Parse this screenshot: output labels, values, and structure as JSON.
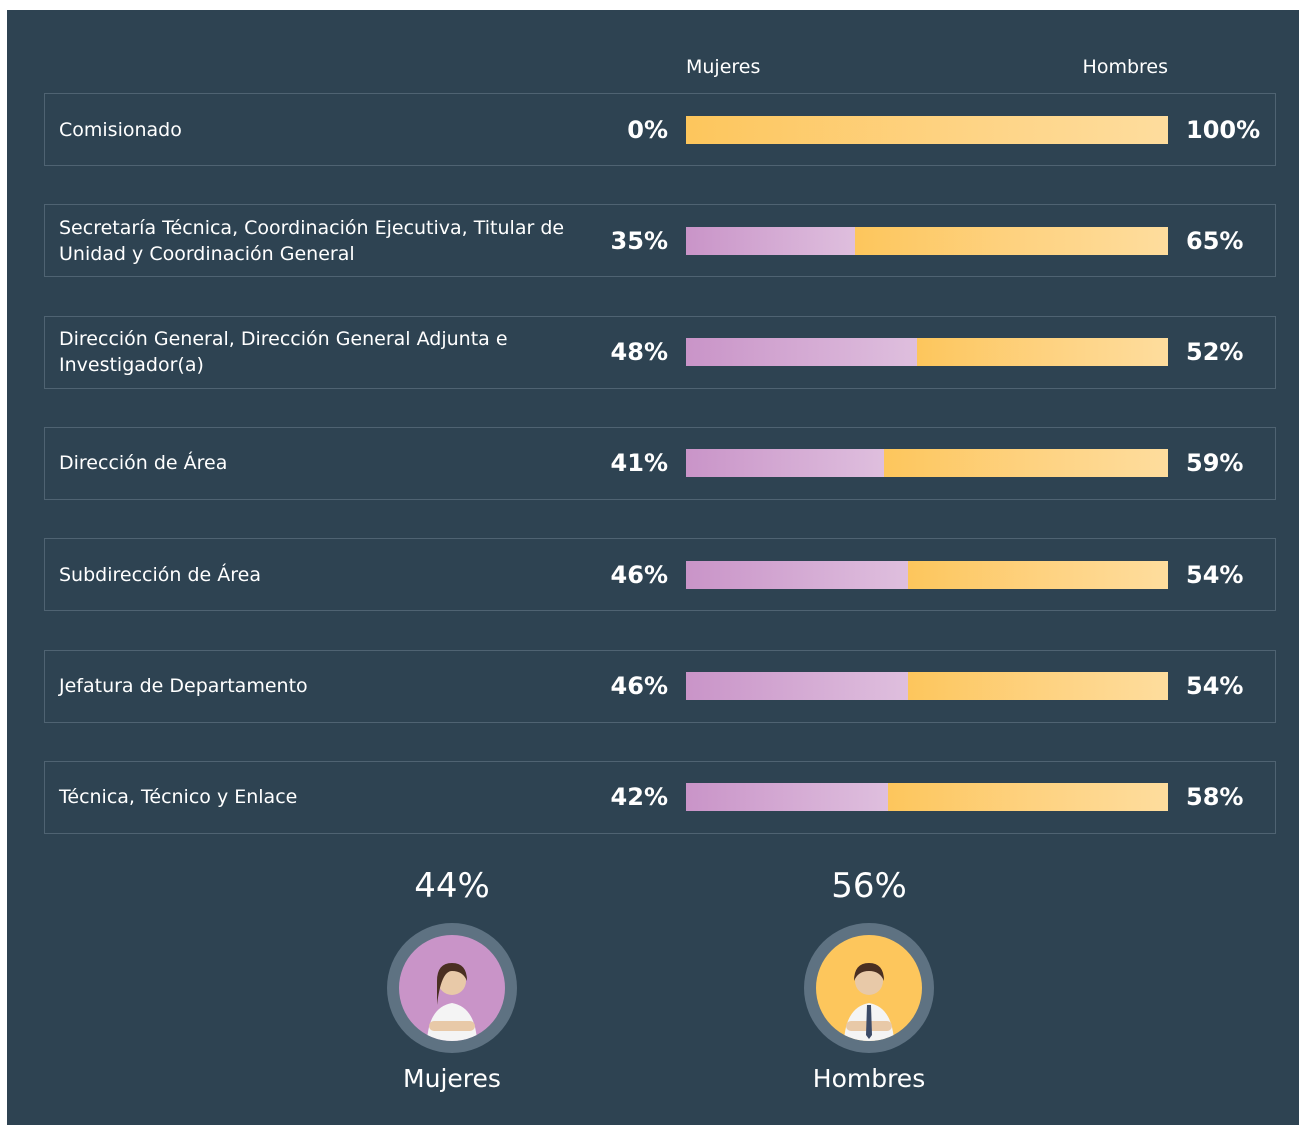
{
  "chart_data": {
    "type": "bar",
    "orientation": "horizontal",
    "stacked": true,
    "categories": [
      "Comisionado",
      "Secretaría Técnica, Coordinación Ejecutiva, Titular de Unidad y Coordinación General",
      "Dirección General, Dirección General Adjunta e Investigador(a)",
      "Dirección de Área",
      "Subdirección de Área",
      "Jefatura de Departamento",
      "Técnica, Técnico y Enlace"
    ],
    "series": [
      {
        "name": "Mujeres",
        "color": "#c994c8",
        "values": [
          0,
          35,
          48,
          41,
          46,
          46,
          42
        ],
        "value_labels": [
          "0%",
          "35%",
          "48%",
          "41%",
          "46%",
          "46%",
          "42%"
        ]
      },
      {
        "name": "Hombres",
        "color": "#fdc65c",
        "values": [
          100,
          65,
          52,
          59,
          54,
          54,
          58
        ],
        "value_labels": [
          "100%",
          "65%",
          "52%",
          "59%",
          "54%",
          "54%",
          "58%"
        ]
      }
    ],
    "totals": [
      44,
      56
    ],
    "total_labels": [
      "44%",
      "56%"
    ]
  }
}
